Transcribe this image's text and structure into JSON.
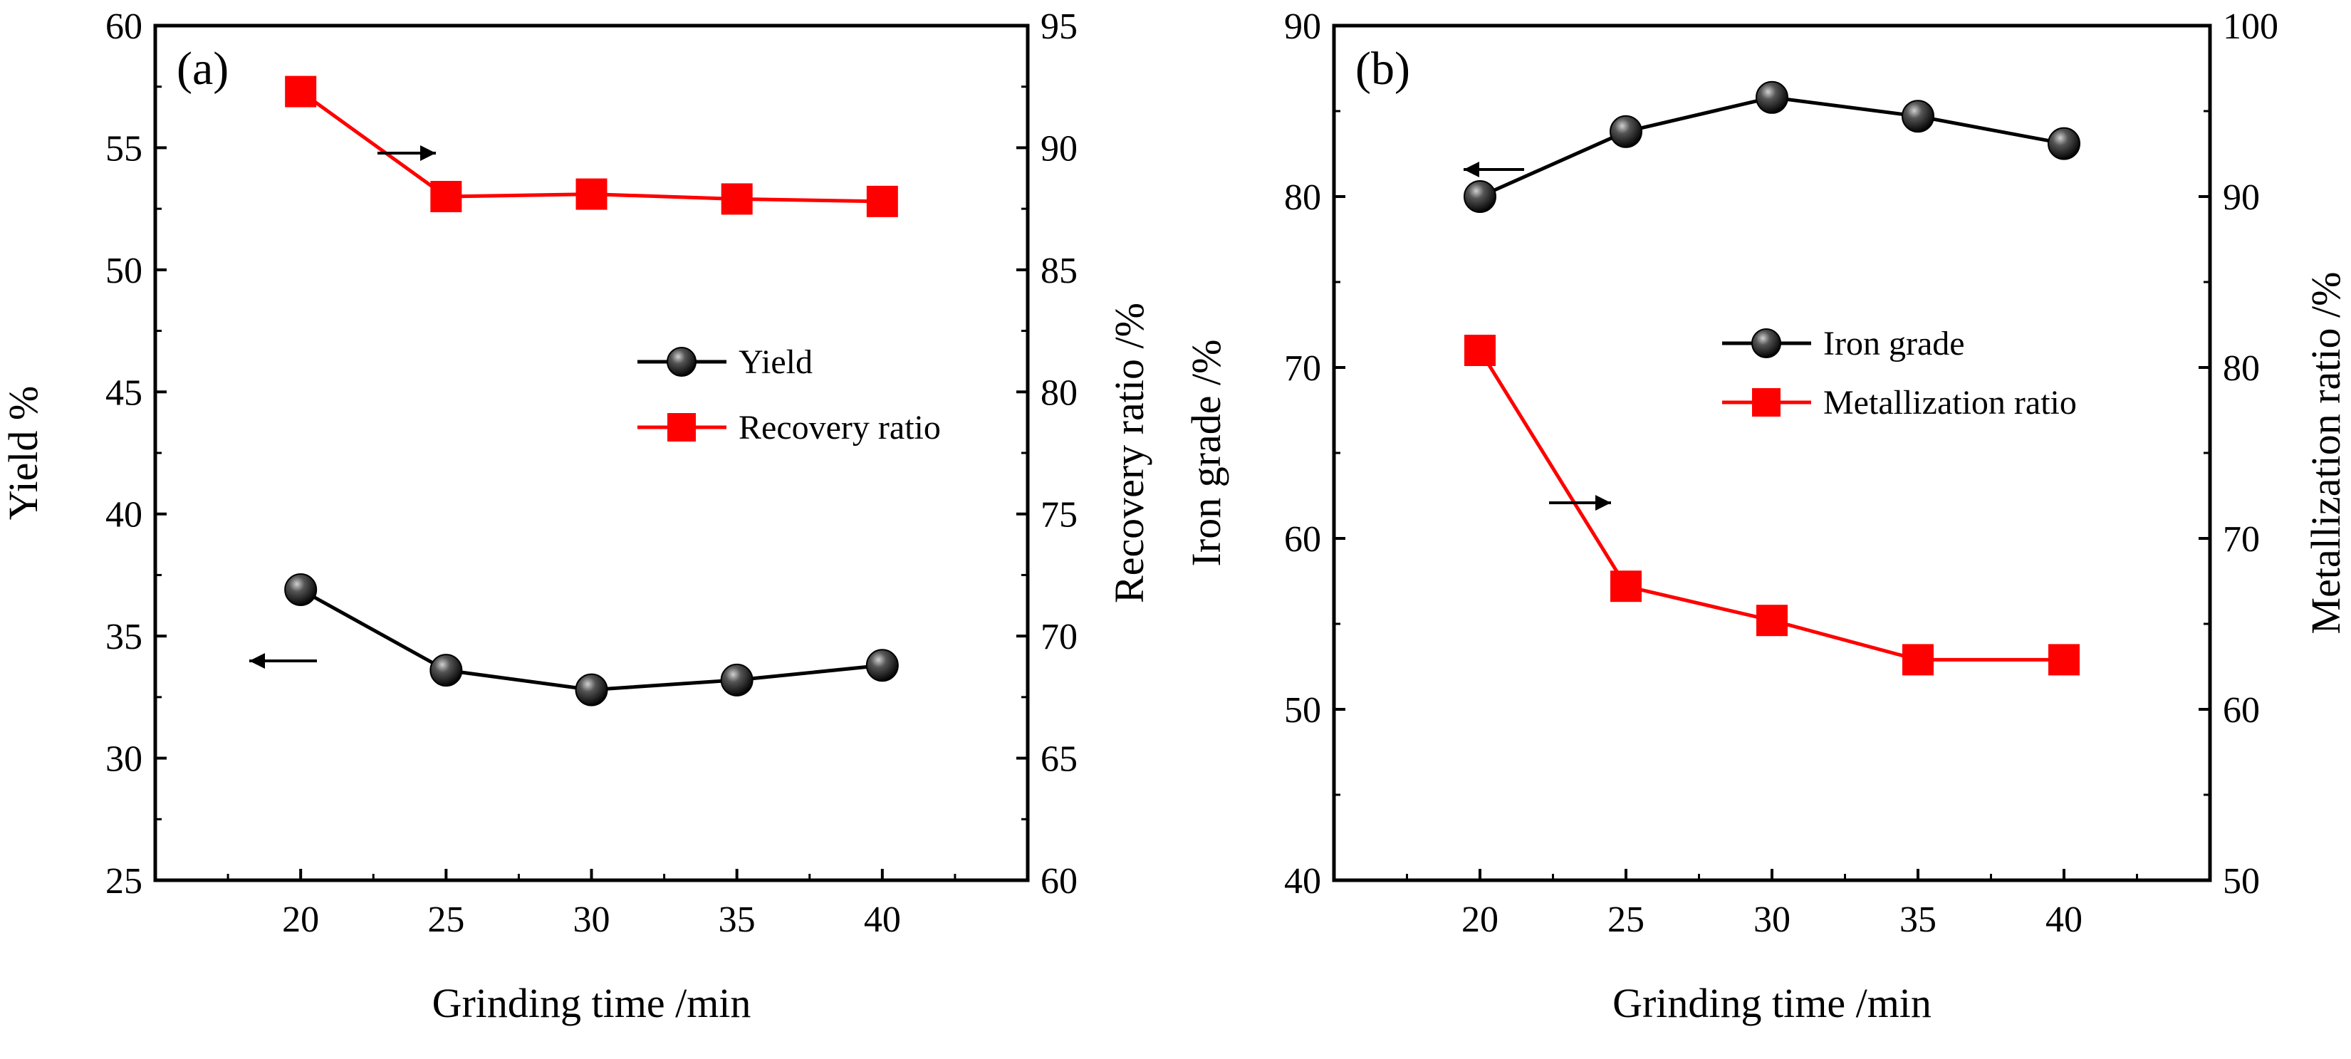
{
  "chart_data": [
    {
      "type": "line",
      "panel_label": "(a)",
      "xlabel": "Grinding time /min",
      "x": [
        20,
        25,
        30,
        35,
        40
      ],
      "xlim": [
        15,
        45
      ],
      "x_ticks": [
        20,
        25,
        30,
        35,
        40
      ],
      "left_axis": {
        "label": "Yield %",
        "ylim": [
          25,
          60
        ],
        "ticks": [
          25,
          30,
          35,
          40,
          45,
          50,
          55,
          60
        ]
      },
      "right_axis": {
        "label": "Recovery ratio /%",
        "ylim": [
          60,
          95
        ],
        "ticks": [
          60,
          65,
          70,
          75,
          80,
          85,
          90,
          95
        ]
      },
      "series": [
        {
          "name": "Yield",
          "axis": "left",
          "marker": "sphere",
          "color": "#000000",
          "values": [
            36.9,
            33.6,
            32.8,
            33.2,
            33.8
          ],
          "arrow": "left"
        },
        {
          "name": "Recovery ratio",
          "axis": "right",
          "marker": "square",
          "color": "#ff0000",
          "values": [
            92.3,
            88.0,
            88.1,
            87.9,
            87.8
          ],
          "arrow": "right"
        }
      ],
      "legend_position": "center-right",
      "grid": false
    },
    {
      "type": "line",
      "panel_label": "(b)",
      "xlabel": "Grinding time /min",
      "x": [
        20,
        25,
        30,
        35,
        40
      ],
      "xlim": [
        15,
        45
      ],
      "x_ticks": [
        20,
        25,
        30,
        35,
        40
      ],
      "left_axis": {
        "label": "Iron grade /%",
        "ylim": [
          40,
          90
        ],
        "ticks": [
          40,
          50,
          60,
          70,
          80,
          90
        ]
      },
      "right_axis": {
        "label": "Metallization ratio /%",
        "ylim": [
          50,
          100
        ],
        "ticks": [
          50,
          60,
          70,
          80,
          90,
          100
        ]
      },
      "series": [
        {
          "name": "Iron grade",
          "axis": "left",
          "marker": "sphere",
          "color": "#000000",
          "values": [
            80.0,
            83.8,
            85.8,
            84.7,
            83.1
          ],
          "arrow": "left"
        },
        {
          "name": "Metallization ratio",
          "axis": "right",
          "marker": "square",
          "color": "#ff0000",
          "values": [
            81.0,
            67.2,
            65.2,
            62.9,
            62.9
          ],
          "arrow": "right"
        }
      ],
      "legend_position": "center-right",
      "grid": false
    }
  ]
}
